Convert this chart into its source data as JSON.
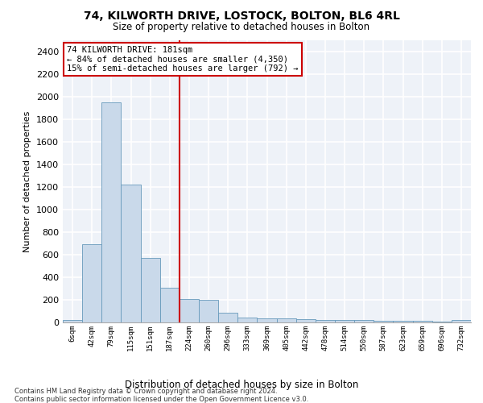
{
  "title": "74, KILWORTH DRIVE, LOSTOCK, BOLTON, BL6 4RL",
  "subtitle": "Size of property relative to detached houses in Bolton",
  "xlabel": "Distribution of detached houses by size in Bolton",
  "ylabel": "Number of detached properties",
  "bar_labels": [
    "6sqm",
    "42sqm",
    "79sqm",
    "115sqm",
    "151sqm",
    "187sqm",
    "224sqm",
    "260sqm",
    "296sqm",
    "333sqm",
    "369sqm",
    "405sqm",
    "442sqm",
    "478sqm",
    "514sqm",
    "550sqm",
    "587sqm",
    "623sqm",
    "659sqm",
    "696sqm",
    "732sqm"
  ],
  "bar_values": [
    18,
    695,
    1950,
    1225,
    575,
    310,
    205,
    200,
    85,
    45,
    38,
    35,
    30,
    22,
    18,
    25,
    15,
    13,
    12,
    10,
    22
  ],
  "bar_color": "#c9d9ea",
  "bar_edgecolor": "#6699bb",
  "ylim": [
    0,
    2500
  ],
  "yticks": [
    0,
    200,
    400,
    600,
    800,
    1000,
    1200,
    1400,
    1600,
    1800,
    2000,
    2200,
    2400
  ],
  "property_line_index": 5,
  "property_line_color": "#cc0000",
  "annotation_text": "74 KILWORTH DRIVE: 181sqm\n← 84% of detached houses are smaller (4,350)\n15% of semi-detached houses are larger (792) →",
  "annotation_box_color": "#ffffff",
  "annotation_box_edgecolor": "#cc0000",
  "footer1": "Contains HM Land Registry data © Crown copyright and database right 2024.",
  "footer2": "Contains public sector information licensed under the Open Government Licence v3.0.",
  "background_color": "#eef2f8",
  "grid_color": "#ffffff",
  "fig_background": "#ffffff"
}
